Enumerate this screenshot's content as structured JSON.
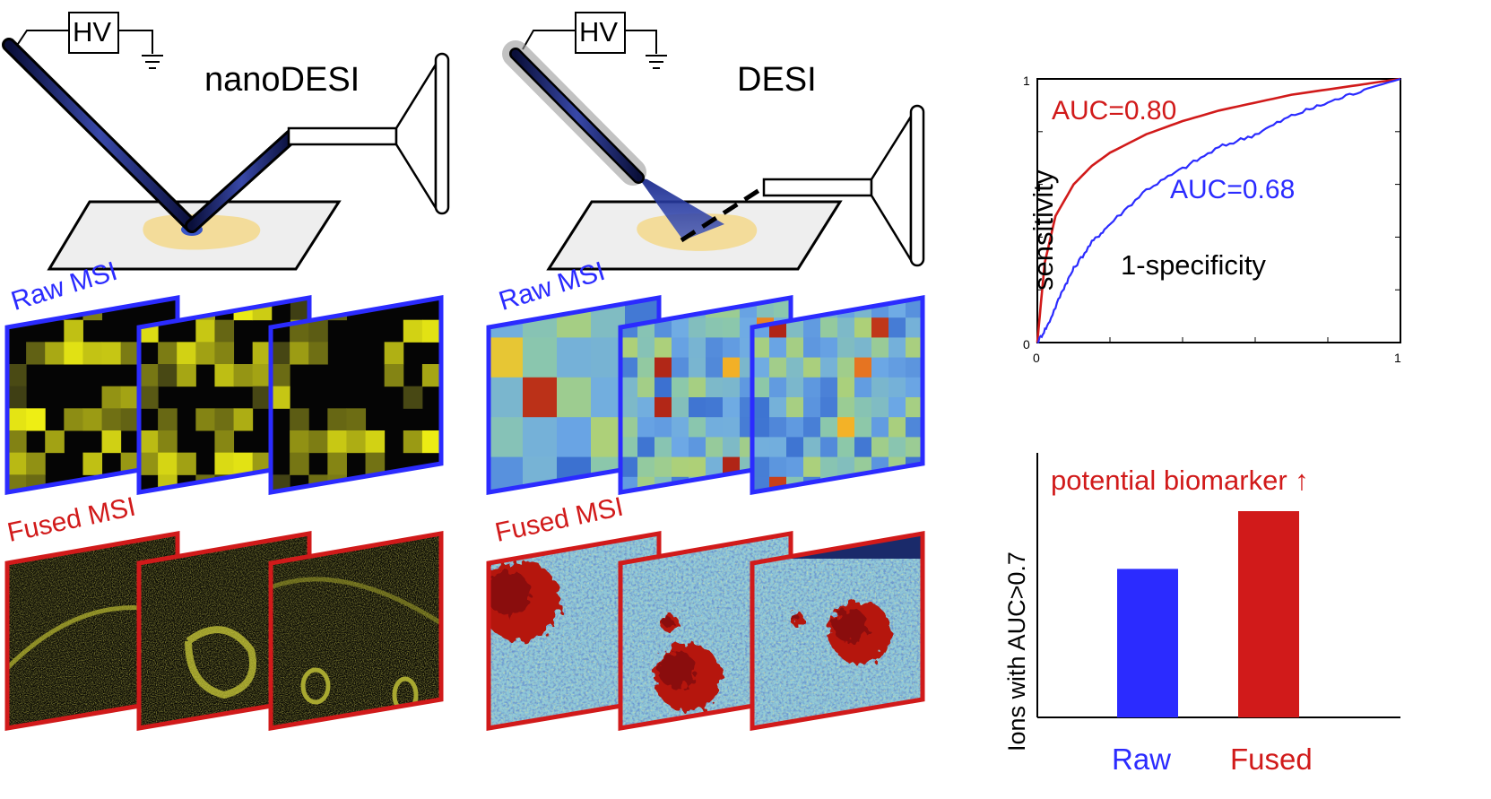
{
  "panels": {
    "nanodesi": {
      "title": "nanoDESI",
      "hv_label": "HV",
      "raw_label": "Raw MSI",
      "fused_label": "Fused MSI"
    },
    "desi": {
      "title": "DESI",
      "hv_label": "HV",
      "raw_label": "Raw MSI",
      "fused_label": "Fused MSI"
    }
  },
  "colors": {
    "raw": "#2b2bff",
    "fused": "#d11a1a",
    "tissue": "#f3dc9a",
    "needle": "#1d2a6b",
    "msi_yellow": "#cccc22"
  },
  "chart_data": [
    {
      "type": "line",
      "title": "",
      "xlabel": "1-specificity",
      "ylabel": "sensitivity",
      "xlim": [
        0,
        1
      ],
      "ylim": [
        0,
        1
      ],
      "xticks": [
        "0",
        "1"
      ],
      "yticks": [
        "0",
        "1"
      ],
      "annotations": [
        "AUC=0.80",
        "AUC=0.68"
      ],
      "series": [
        {
          "auc": 0.8,
          "color": "#d11a1a",
          "x": [
            0,
            0.02,
            0.05,
            0.1,
            0.15,
            0.2,
            0.3,
            0.4,
            0.5,
            0.6,
            0.7,
            0.8,
            0.9,
            1.0
          ],
          "y": [
            0,
            0.3,
            0.48,
            0.6,
            0.67,
            0.72,
            0.79,
            0.84,
            0.88,
            0.91,
            0.94,
            0.96,
            0.98,
            1.0
          ]
        },
        {
          "auc": 0.68,
          "color": "#2b2bff",
          "x": [
            0,
            0.03,
            0.07,
            0.1,
            0.15,
            0.2,
            0.3,
            0.4,
            0.5,
            0.6,
            0.7,
            0.8,
            0.9,
            1.0
          ],
          "y": [
            0,
            0.07,
            0.2,
            0.28,
            0.38,
            0.45,
            0.58,
            0.66,
            0.74,
            0.79,
            0.86,
            0.91,
            0.96,
            1.0
          ]
        }
      ]
    },
    {
      "type": "bar",
      "title": "",
      "annotation": "potential biomarker ↑",
      "ylabel": "Ions with AUC>0.7",
      "categories": [
        "Raw",
        "Fused"
      ],
      "values": [
        0.72,
        1.0
      ],
      "colors": [
        "#2b2bff",
        "#d11a1a"
      ]
    }
  ]
}
